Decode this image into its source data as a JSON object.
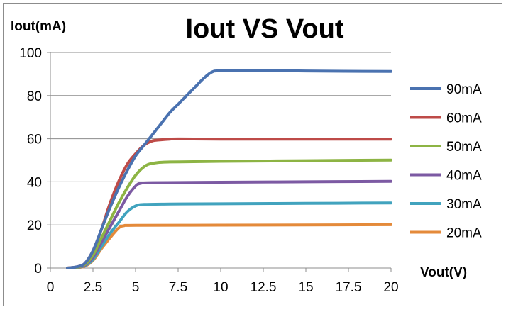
{
  "chart_data": {
    "type": "line",
    "title": "Iout VS Vout",
    "xlabel": "Vout(V)",
    "ylabel": "Iout(mA)",
    "xlim": [
      0,
      20
    ],
    "ylim": [
      0,
      100
    ],
    "xticks": [
      "0",
      "2.5",
      "5",
      "7.5",
      "10",
      "12.5",
      "15",
      "17.5",
      "20"
    ],
    "yticks": [
      "0",
      "20",
      "40",
      "60",
      "80",
      "100"
    ],
    "grid": "y-major",
    "legend_position": "right",
    "series": [
      {
        "name": "90mA",
        "color": "#4a72b0",
        "points": [
          [
            1,
            0
          ],
          [
            1.5,
            0.5
          ],
          [
            2,
            2
          ],
          [
            2.5,
            8
          ],
          [
            3,
            18
          ],
          [
            3.5,
            28
          ],
          [
            4,
            37
          ],
          [
            4.5,
            45
          ],
          [
            5,
            52
          ],
          [
            5.5,
            57
          ],
          [
            6,
            62
          ],
          [
            6.5,
            67
          ],
          [
            7,
            72
          ],
          [
            7.5,
            76
          ],
          [
            8,
            80
          ],
          [
            8.5,
            84
          ],
          [
            9,
            88
          ],
          [
            9.5,
            91
          ],
          [
            10,
            91.5
          ],
          [
            12,
            91.7
          ],
          [
            15,
            91.4
          ],
          [
            20,
            91.2
          ]
        ]
      },
      {
        "name": "60mA",
        "color": "#be4b48",
        "points": [
          [
            1,
            0
          ],
          [
            1.5,
            0.5
          ],
          [
            2,
            2
          ],
          [
            2.5,
            8
          ],
          [
            3,
            18
          ],
          [
            3.5,
            30
          ],
          [
            4,
            40
          ],
          [
            4.5,
            48
          ],
          [
            5,
            53
          ],
          [
            5.5,
            57
          ],
          [
            6,
            59
          ],
          [
            6.5,
            59.5
          ],
          [
            7,
            59.8
          ],
          [
            7.5,
            59.9
          ],
          [
            10,
            59.8
          ],
          [
            15,
            59.8
          ],
          [
            20,
            59.8
          ]
        ]
      },
      {
        "name": "50mA",
        "color": "#8db444",
        "points": [
          [
            1,
            0
          ],
          [
            1.5,
            0.3
          ],
          [
            2,
            1.5
          ],
          [
            2.5,
            6
          ],
          [
            3,
            14
          ],
          [
            3.5,
            22
          ],
          [
            4,
            30
          ],
          [
            4.5,
            37
          ],
          [
            5,
            43
          ],
          [
            5.5,
            47
          ],
          [
            6,
            48.6
          ],
          [
            7,
            49.2
          ],
          [
            10,
            49.5
          ],
          [
            15,
            49.8
          ],
          [
            20,
            50.1
          ]
        ]
      },
      {
        "name": "40mA",
        "color": "#7c5aa3",
        "points": [
          [
            1,
            0
          ],
          [
            1.5,
            0.3
          ],
          [
            2,
            1.2
          ],
          [
            2.5,
            5
          ],
          [
            3,
            12
          ],
          [
            3.5,
            19
          ],
          [
            4,
            26
          ],
          [
            4.5,
            33
          ],
          [
            5,
            38
          ],
          [
            5.3,
            39.3
          ],
          [
            6,
            39.6
          ],
          [
            10,
            39.8
          ],
          [
            15,
            40.0
          ],
          [
            20,
            40.2
          ]
        ]
      },
      {
        "name": "30mA",
        "color": "#41a3be",
        "points": [
          [
            1,
            0
          ],
          [
            1.5,
            0.2
          ],
          [
            2,
            1
          ],
          [
            2.5,
            4
          ],
          [
            3,
            10
          ],
          [
            3.5,
            16
          ],
          [
            4,
            21
          ],
          [
            4.5,
            26
          ],
          [
            5,
            28.8
          ],
          [
            5.5,
            29.5
          ],
          [
            7,
            29.7
          ],
          [
            10,
            29.8
          ],
          [
            15,
            30.0
          ],
          [
            20,
            30.2
          ]
        ]
      },
      {
        "name": "20mA",
        "color": "#e48a3a",
        "points": [
          [
            1,
            0
          ],
          [
            1.5,
            0.2
          ],
          [
            2,
            0.8
          ],
          [
            2.5,
            3.5
          ],
          [
            3,
            9
          ],
          [
            3.5,
            14
          ],
          [
            4,
            18.5
          ],
          [
            4.3,
            19.6
          ],
          [
            5,
            19.8
          ],
          [
            10,
            19.9
          ],
          [
            15,
            20.0
          ],
          [
            20,
            20.1
          ]
        ]
      }
    ]
  }
}
